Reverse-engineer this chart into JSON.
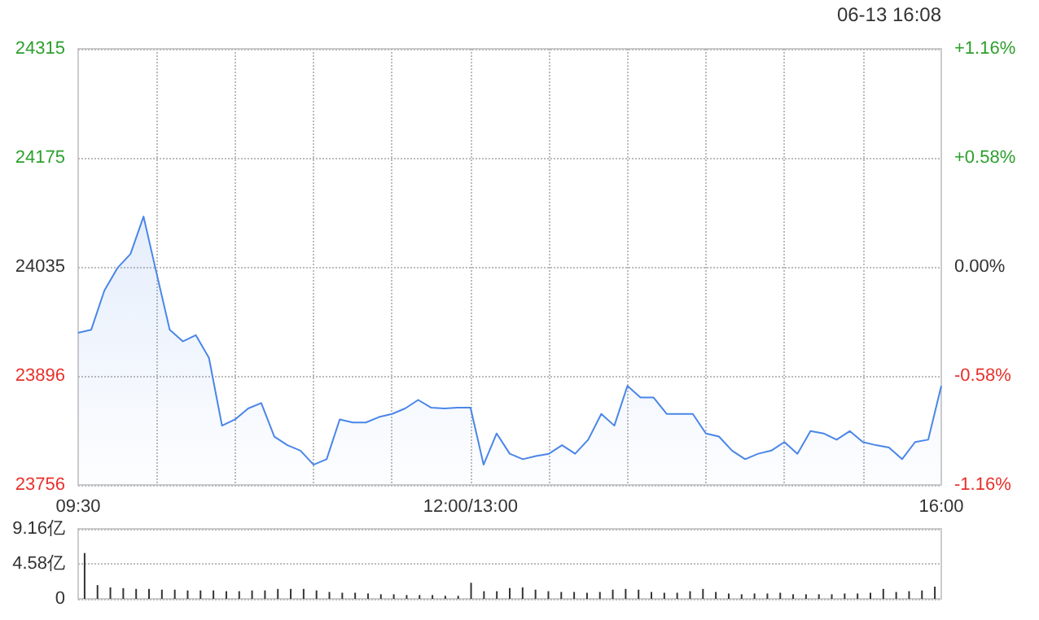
{
  "chart_data": [
    {
      "type": "area",
      "annotations": [
        "06-13 16:08"
      ],
      "categories": [
        "09:30",
        null,
        null,
        null,
        null,
        null,
        null,
        null,
        null,
        null,
        null,
        null,
        null,
        null,
        null,
        null,
        null,
        null,
        null,
        null,
        null,
        null,
        null,
        null,
        null,
        null,
        null,
        null,
        null,
        null,
        "12:00/13:00",
        null,
        null,
        null,
        null,
        null,
        null,
        null,
        null,
        null,
        null,
        null,
        null,
        null,
        null,
        null,
        null,
        null,
        null,
        null,
        null,
        null,
        null,
        null,
        null,
        null,
        null,
        null,
        null,
        null,
        null,
        null,
        null,
        null,
        null,
        null,
        "16:00"
      ],
      "series": [
        {
          "color": "#4a86e8",
          "values": [
            23951,
            23955,
            24005,
            24034,
            24052,
            24100,
            24027,
            23955,
            23940,
            23948,
            23919,
            23832,
            23840,
            23854,
            23861,
            23818,
            23807,
            23800,
            23782,
            23789,
            23840,
            23836,
            23836,
            23843,
            23847,
            23854,
            23865,
            23855,
            23854,
            23855,
            23855,
            23782,
            23822,
            23796,
            23789,
            23793,
            23796,
            23807,
            23796,
            23814,
            23847,
            23832,
            23883,
            23868,
            23868,
            23847,
            23847,
            23847,
            23822,
            23818,
            23800,
            23789,
            23796,
            23800,
            23811,
            23796,
            23825,
            23822,
            23814,
            23825,
            23811,
            23807,
            23804,
            23789,
            23811,
            23814,
            23883
          ]
        }
      ],
      "ylim": [
        23756,
        24315
      ],
      "yticks": [
        23756,
        23896,
        24035,
        24175,
        24315
      ],
      "y2lim": [
        -1.16,
        1.16
      ],
      "y2ticks": [
        {
          "value": -1.16,
          "label": "-1.16%"
        },
        {
          "value": -0.58,
          "label": "-0.58%"
        },
        {
          "value": 0,
          "label": "0.00%"
        },
        {
          "value": 0.58,
          "label": "+0.58%"
        },
        {
          "value": 1.16,
          "label": "+1.16%"
        }
      ],
      "grid": true,
      "marker": "none"
    },
    {
      "type": "bar",
      "categories": [
        null,
        null,
        null,
        null,
        null,
        null,
        null,
        null,
        null,
        null,
        null,
        null,
        null,
        null,
        null,
        null,
        null,
        null,
        null,
        null,
        null,
        null,
        null,
        null,
        null,
        null,
        null,
        null,
        null,
        null,
        null,
        null,
        null,
        null,
        null,
        null,
        null,
        null,
        null,
        null,
        null,
        null,
        null,
        null,
        null,
        null,
        null,
        null,
        null,
        null,
        null,
        null,
        null,
        null,
        null,
        null,
        null,
        null,
        null,
        null,
        null,
        null,
        null,
        null,
        null,
        null,
        null
      ],
      "series": [
        {
          "color": "#333333",
          "values": [
            6.0,
            1.8,
            1.5,
            1.4,
            1.3,
            1.3,
            1.2,
            1.2,
            1.1,
            1.1,
            1.1,
            1.0,
            1.0,
            1.1,
            1.1,
            1.3,
            1.3,
            1.3,
            1.1,
            0.9,
            0.8,
            0.8,
            0.7,
            0.6,
            0.6,
            0.5,
            0.5,
            0.5,
            0.4,
            0.4,
            2.1,
            1.0,
            1.0,
            1.4,
            1.5,
            1.2,
            1.0,
            0.9,
            0.9,
            0.8,
            0.9,
            1.2,
            1.3,
            1.2,
            0.9,
            0.8,
            0.8,
            1.0,
            1.3,
            0.9,
            0.7,
            0.6,
            0.7,
            0.7,
            0.8,
            0.6,
            0.6,
            0.6,
            0.6,
            0.7,
            0.7,
            0.8,
            1.3,
            0.9,
            1.0,
            1.1,
            1.6
          ]
        }
      ],
      "ylim": [
        0,
        9.16
      ],
      "yticks": [
        0,
        {
          "value": 4.58,
          "label": "4.58亿"
        },
        {
          "value": 9.16,
          "label": "9.16亿"
        }
      ],
      "grid": "y"
    }
  ]
}
